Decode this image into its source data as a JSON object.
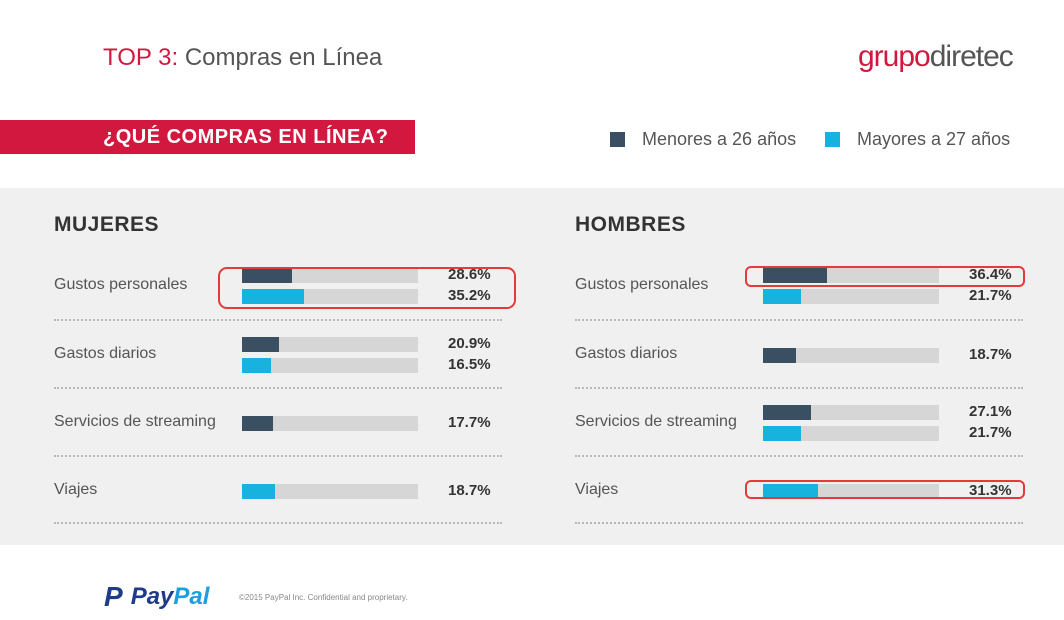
{
  "header": {
    "title_prefix": "TOP 3:",
    "title_main": " Compras en Línea",
    "logo_part1": "grupo",
    "logo_part2": "diretec"
  },
  "banner": {
    "text": "¿QUÉ COMPRAS EN LÍNEA?"
  },
  "legend": [
    {
      "label": "Menores a 26 años",
      "color": "#3b4f63"
    },
    {
      "label": "Mayores a 27 años",
      "color": "#17b2de"
    }
  ],
  "chart_data": [
    {
      "type": "bar",
      "title": "MUJERES",
      "categories": [
        "Gustos personales",
        "Gastos diarios",
        "Servicios de streaming",
        "Viajes"
      ],
      "series": [
        {
          "name": "Menores a 26 años",
          "values": [
            28.6,
            20.9,
            17.7,
            null
          ]
        },
        {
          "name": "Mayores a 27 años",
          "values": [
            35.2,
            16.5,
            null,
            18.7
          ]
        }
      ],
      "labels": [
        [
          "28.6%",
          "35.2%"
        ],
        [
          "20.9%",
          "16.5%"
        ],
        [
          "17.7%"
        ],
        [
          "18.7%"
        ]
      ],
      "highlighted": [
        "Gustos personales"
      ],
      "ylim": [
        0,
        100
      ]
    },
    {
      "type": "bar",
      "title": "HOMBRES",
      "categories": [
        "Gustos personales",
        "Gastos diarios",
        "Servicios de streaming",
        "Viajes"
      ],
      "series": [
        {
          "name": "Menores a 26 años",
          "values": [
            36.4,
            18.7,
            27.1,
            null
          ]
        },
        {
          "name": "Mayores a 27 años",
          "values": [
            21.7,
            null,
            21.7,
            31.3
          ]
        }
      ],
      "labels": [
        [
          "36.4%",
          "21.7%"
        ],
        [
          "18.7%"
        ],
        [
          "27.1%",
          "21.7%"
        ],
        [
          "31.3%"
        ]
      ],
      "highlighted": [
        "Gustos personales: 36.4%",
        "Viajes: 31.3%"
      ],
      "ylim": [
        0,
        100
      ]
    }
  ],
  "footer": {
    "paypal_mark": "P",
    "paypal_word1": "Pay",
    "paypal_word2": "Pal",
    "copyright": "©2015 PayPal Inc. Confidential and proprietary."
  }
}
